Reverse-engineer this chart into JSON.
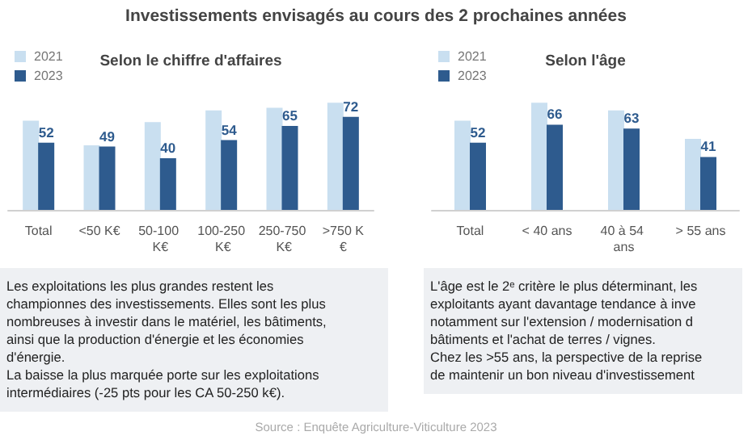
{
  "chart_data": [
    {
      "type": "bar",
      "title": "Investissements envisagés au cours des 2 prochaines années",
      "subtitle": "Selon le chiffre d'affaires",
      "categories": [
        "Total",
        "<50 K€",
        "50-100 K€",
        "100-250 K€",
        "250-750 K€",
        ">750 K€"
      ],
      "series": [
        {
          "name": "2021",
          "color": "#c9dff0",
          "values": [
            69,
            50,
            68,
            77,
            79,
            83
          ]
        },
        {
          "name": "2023",
          "color": "#2e5b8e",
          "values": [
            52,
            49,
            40,
            54,
            65,
            72
          ],
          "value_labels": [
            "52",
            "49",
            "40",
            "54",
            "65",
            "72"
          ]
        }
      ],
      "legend": "top left",
      "annotations": [
        "Les exploitations les plus grandes restent les",
        "championnes des investissements. Elles sont les plus",
        "nombreuses à investir dans le matériel, les bâtiments,",
        "ainsi que la production d'énergie et les économies",
        "d'énergie.",
        "La baisse la plus marquée porte sur les exploitations",
        "intermédiaires (-25 pts pour les CA 50-250 k€)."
      ]
    },
    {
      "type": "bar",
      "subtitle": "Selon l'âge",
      "categories": [
        "Total",
        "< 40 ans",
        "40 à 54 ans",
        "> 55 ans"
      ],
      "series": [
        {
          "name": "2021",
          "color": "#c9dff0",
          "values": [
            69,
            83,
            77,
            55
          ]
        },
        {
          "name": "2023",
          "color": "#2e5b8e",
          "values": [
            52,
            66,
            63,
            41
          ],
          "value_labels": [
            "52",
            "66",
            "63",
            "41"
          ]
        }
      ],
      "legend": "top left",
      "annotations": [
        "L'âge est le 2ᵉ critère le plus déterminant, les",
        "exploitants ayant davantage tendance à inve",
        "notamment sur l'extension / modernisation d",
        "bâtiments et l'achat de terres / vignes.",
        "Chez les >55 ans, la perspective de la reprise",
        "de maintenir un bon niveau d'investissement"
      ]
    },
    {
      "type": "other",
      "annotations": [
        "Source : Enquête Agriculture-Viticulture 2023"
      ]
    }
  ]
}
